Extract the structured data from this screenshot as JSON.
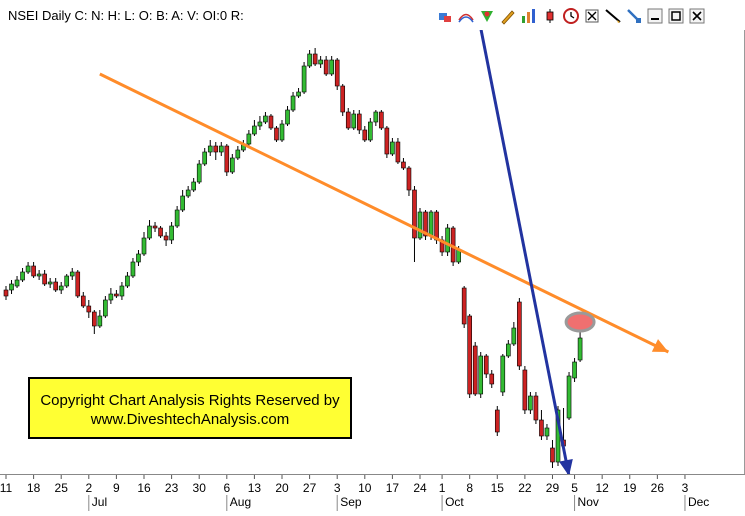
{
  "title": "NSEI Daily C: N: H: L: O: B: A: V: OI:0 R:",
  "toolbar": {
    "icons": [
      "chart-props-icon",
      "overlay-icon",
      "indicator-icon",
      "pencil-icon",
      "bar-chart-icon",
      "candle-icon",
      "clock-icon",
      "crosshair-icon",
      "line-draw-icon",
      "tool-icon",
      "minimize-icon",
      "maximize-icon",
      "close-icon"
    ]
  },
  "watermark": {
    "line1": "Copyright Chart Analysis Rights Reserved by",
    "line2": "www.DiveshtechAnalysis.com"
  },
  "colors": {
    "up": "#33bb33",
    "down": "#cc2222",
    "trendline": "#ff8c2a",
    "arrow": "#2233a0",
    "highlight": "#f07070"
  },
  "chart_data": {
    "type": "candlestick",
    "title": "NSEI Daily",
    "y_scale": "unscaled (no price axis shown)",
    "x_ticks": [
      {
        "label": "11",
        "i": 0
      },
      {
        "label": "18",
        "i": 5
      },
      {
        "label": "25",
        "i": 10
      },
      {
        "label": "2",
        "i": 15
      },
      {
        "label": "9",
        "i": 20
      },
      {
        "label": "16",
        "i": 25
      },
      {
        "label": "23",
        "i": 30
      },
      {
        "label": "30",
        "i": 35
      },
      {
        "label": "6",
        "i": 40
      },
      {
        "label": "13",
        "i": 45
      },
      {
        "label": "20",
        "i": 50
      },
      {
        "label": "27",
        "i": 55
      },
      {
        "label": "3",
        "i": 60
      },
      {
        "label": "10",
        "i": 65
      },
      {
        "label": "17",
        "i": 70
      },
      {
        "label": "24",
        "i": 75
      },
      {
        "label": "1",
        "i": 79
      },
      {
        "label": "8",
        "i": 84
      },
      {
        "label": "15",
        "i": 89
      },
      {
        "label": "22",
        "i": 94
      },
      {
        "label": "29",
        "i": 99
      },
      {
        "label": "5",
        "i": 103
      },
      {
        "label": "12",
        "i": 108
      },
      {
        "label": "19",
        "i": 113
      },
      {
        "label": "26",
        "i": 118
      },
      {
        "label": "3",
        "i": 123
      }
    ],
    "month_labels": [
      {
        "label": "Jul",
        "i": 15
      },
      {
        "label": "Aug",
        "i": 40
      },
      {
        "label": "Sep",
        "i": 60
      },
      {
        "label": "Oct",
        "i": 79
      },
      {
        "label": "Nov",
        "i": 103
      },
      {
        "label": "Dec",
        "i": 123
      }
    ],
    "candles": [
      {
        "o": 290,
        "c": 296,
        "h": 300,
        "l": 286
      },
      {
        "o": 290,
        "c": 284,
        "h": 294,
        "l": 280
      },
      {
        "o": 286,
        "c": 280,
        "h": 288,
        "l": 276
      },
      {
        "o": 280,
        "c": 272,
        "h": 282,
        "l": 268
      },
      {
        "o": 272,
        "c": 266,
        "h": 274,
        "l": 262
      },
      {
        "o": 266,
        "c": 276,
        "h": 278,
        "l": 262
      },
      {
        "o": 276,
        "c": 274,
        "h": 280,
        "l": 270
      },
      {
        "o": 274,
        "c": 284,
        "h": 286,
        "l": 270
      },
      {
        "o": 284,
        "c": 282,
        "h": 288,
        "l": 278
      },
      {
        "o": 282,
        "c": 290,
        "h": 292,
        "l": 278
      },
      {
        "o": 290,
        "c": 286,
        "h": 294,
        "l": 282
      },
      {
        "o": 286,
        "c": 276,
        "h": 288,
        "l": 274
      },
      {
        "o": 276,
        "c": 272,
        "h": 280,
        "l": 268
      },
      {
        "o": 272,
        "c": 296,
        "h": 298,
        "l": 270
      },
      {
        "o": 296,
        "c": 306,
        "h": 308,
        "l": 292
      },
      {
        "o": 306,
        "c": 312,
        "h": 318,
        "l": 300
      },
      {
        "o": 312,
        "c": 326,
        "h": 334,
        "l": 310
      },
      {
        "o": 326,
        "c": 316,
        "h": 328,
        "l": 310
      },
      {
        "o": 316,
        "c": 300,
        "h": 318,
        "l": 296
      },
      {
        "o": 300,
        "c": 294,
        "h": 304,
        "l": 288
      },
      {
        "o": 294,
        "c": 296,
        "h": 298,
        "l": 290
      },
      {
        "o": 296,
        "c": 286,
        "h": 300,
        "l": 282
      },
      {
        "o": 286,
        "c": 276,
        "h": 288,
        "l": 272
      },
      {
        "o": 276,
        "c": 262,
        "h": 278,
        "l": 258
      },
      {
        "o": 262,
        "c": 254,
        "h": 266,
        "l": 250
      },
      {
        "o": 254,
        "c": 238,
        "h": 256,
        "l": 232
      },
      {
        "o": 238,
        "c": 226,
        "h": 240,
        "l": 220
      },
      {
        "o": 226,
        "c": 228,
        "h": 232,
        "l": 222
      },
      {
        "o": 228,
        "c": 236,
        "h": 238,
        "l": 226
      },
      {
        "o": 236,
        "c": 240,
        "h": 246,
        "l": 232
      },
      {
        "o": 240,
        "c": 226,
        "h": 244,
        "l": 222
      },
      {
        "o": 226,
        "c": 210,
        "h": 228,
        "l": 206
      },
      {
        "o": 210,
        "c": 196,
        "h": 212,
        "l": 190
      },
      {
        "o": 196,
        "c": 190,
        "h": 198,
        "l": 186
      },
      {
        "o": 190,
        "c": 182,
        "h": 192,
        "l": 178
      },
      {
        "o": 182,
        "c": 164,
        "h": 184,
        "l": 160
      },
      {
        "o": 164,
        "c": 152,
        "h": 166,
        "l": 148
      },
      {
        "o": 152,
        "c": 146,
        "h": 156,
        "l": 140
      },
      {
        "o": 146,
        "c": 152,
        "h": 160,
        "l": 142
      },
      {
        "o": 152,
        "c": 146,
        "h": 156,
        "l": 142
      },
      {
        "o": 146,
        "c": 172,
        "h": 176,
        "l": 144
      },
      {
        "o": 172,
        "c": 158,
        "h": 174,
        "l": 154
      },
      {
        "o": 158,
        "c": 150,
        "h": 160,
        "l": 146
      },
      {
        "o": 150,
        "c": 144,
        "h": 152,
        "l": 140
      },
      {
        "o": 144,
        "c": 134,
        "h": 146,
        "l": 130
      },
      {
        "o": 134,
        "c": 126,
        "h": 136,
        "l": 120
      },
      {
        "o": 126,
        "c": 122,
        "h": 130,
        "l": 116
      },
      {
        "o": 122,
        "c": 116,
        "h": 124,
        "l": 112
      },
      {
        "o": 116,
        "c": 128,
        "h": 130,
        "l": 114
      },
      {
        "o": 128,
        "c": 140,
        "h": 142,
        "l": 126
      },
      {
        "o": 140,
        "c": 124,
        "h": 142,
        "l": 120
      },
      {
        "o": 124,
        "c": 110,
        "h": 126,
        "l": 106
      },
      {
        "o": 110,
        "c": 96,
        "h": 112,
        "l": 92
      },
      {
        "o": 96,
        "c": 92,
        "h": 98,
        "l": 88
      },
      {
        "o": 92,
        "c": 66,
        "h": 94,
        "l": 62
      },
      {
        "o": 66,
        "c": 54,
        "h": 68,
        "l": 50
      },
      {
        "o": 54,
        "c": 64,
        "h": 66,
        "l": 48
      },
      {
        "o": 64,
        "c": 60,
        "h": 68,
        "l": 56
      },
      {
        "o": 60,
        "c": 74,
        "h": 76,
        "l": 56
      },
      {
        "o": 74,
        "c": 60,
        "h": 76,
        "l": 56
      },
      {
        "o": 60,
        "c": 86,
        "h": 90,
        "l": 58
      },
      {
        "o": 86,
        "c": 112,
        "h": 116,
        "l": 84
      },
      {
        "o": 112,
        "c": 128,
        "h": 130,
        "l": 108
      },
      {
        "o": 128,
        "c": 114,
        "h": 130,
        "l": 110
      },
      {
        "o": 114,
        "c": 130,
        "h": 134,
        "l": 110
      },
      {
        "o": 130,
        "c": 140,
        "h": 142,
        "l": 126
      },
      {
        "o": 140,
        "c": 122,
        "h": 142,
        "l": 118
      },
      {
        "o": 122,
        "c": 112,
        "h": 126,
        "l": 110
      },
      {
        "o": 112,
        "c": 128,
        "h": 130,
        "l": 110
      },
      {
        "o": 128,
        "c": 154,
        "h": 158,
        "l": 126
      },
      {
        "o": 154,
        "c": 142,
        "h": 156,
        "l": 138
      },
      {
        "o": 142,
        "c": 162,
        "h": 164,
        "l": 138
      },
      {
        "o": 162,
        "c": 168,
        "h": 170,
        "l": 158
      },
      {
        "o": 168,
        "c": 190,
        "h": 196,
        "l": 166
      },
      {
        "o": 190,
        "c": 238,
        "h": 262,
        "l": 186
      },
      {
        "o": 238,
        "c": 212,
        "h": 240,
        "l": 208
      },
      {
        "o": 212,
        "c": 236,
        "h": 240,
        "l": 210
      },
      {
        "o": 236,
        "c": 212,
        "h": 240,
        "l": 210
      },
      {
        "o": 212,
        "c": 240,
        "h": 244,
        "l": 210
      },
      {
        "o": 240,
        "c": 252,
        "h": 256,
        "l": 236
      },
      {
        "o": 252,
        "c": 228,
        "h": 256,
        "l": 224
      },
      {
        "o": 228,
        "c": 262,
        "h": 266,
        "l": 226
      },
      {
        "o": 262,
        "c": 250,
        "h": 264,
        "l": 246
      },
      {
        "o": 288,
        "c": 324,
        "h": 328,
        "l": 286
      },
      {
        "o": 316,
        "c": 394,
        "h": 398,
        "l": 314
      },
      {
        "o": 346,
        "c": 394,
        "h": 396,
        "l": 342
      },
      {
        "o": 394,
        "c": 356,
        "h": 398,
        "l": 352
      },
      {
        "o": 356,
        "c": 374,
        "h": 378,
        "l": 354
      },
      {
        "o": 374,
        "c": 384,
        "h": 388,
        "l": 370
      },
      {
        "o": 410,
        "c": 432,
        "h": 436,
        "l": 406
      },
      {
        "o": 392,
        "c": 356,
        "h": 396,
        "l": 354
      },
      {
        "o": 356,
        "c": 344,
        "h": 358,
        "l": 340
      },
      {
        "o": 344,
        "c": 328,
        "h": 346,
        "l": 322
      },
      {
        "o": 302,
        "c": 366,
        "h": 370,
        "l": 298
      },
      {
        "o": 370,
        "c": 410,
        "h": 414,
        "l": 366
      },
      {
        "o": 410,
        "c": 396,
        "h": 414,
        "l": 392
      },
      {
        "o": 396,
        "c": 420,
        "h": 424,
        "l": 392
      },
      {
        "o": 420,
        "c": 436,
        "h": 440,
        "l": 410
      },
      {
        "o": 436,
        "c": 428,
        "h": 440,
        "l": 424
      },
      {
        "o": 448,
        "c": 462,
        "h": 468,
        "l": 440
      },
      {
        "o": 462,
        "c": 410,
        "h": 466,
        "l": 406
      },
      {
        "o": 440,
        "c": 446,
        "h": 452,
        "l": 408
      },
      {
        "o": 418,
        "c": 376,
        "h": 420,
        "l": 372
      },
      {
        "o": 378,
        "c": 362,
        "h": 382,
        "l": 358
      },
      {
        "o": 360,
        "c": 338,
        "h": 362,
        "l": 332
      }
    ],
    "annotations": [
      {
        "type": "trendline",
        "color": "orange",
        "from": {
          "i": 17,
          "y": 74
        },
        "to": {
          "i": 120,
          "y": 352
        }
      },
      {
        "type": "arrow",
        "color": "navy",
        "from": {
          "i": 86,
          "y": 28
        },
        "to": {
          "i": 102,
          "y": 476
        }
      },
      {
        "type": "ellipse-highlight",
        "i": 104,
        "y": 322
      }
    ]
  }
}
